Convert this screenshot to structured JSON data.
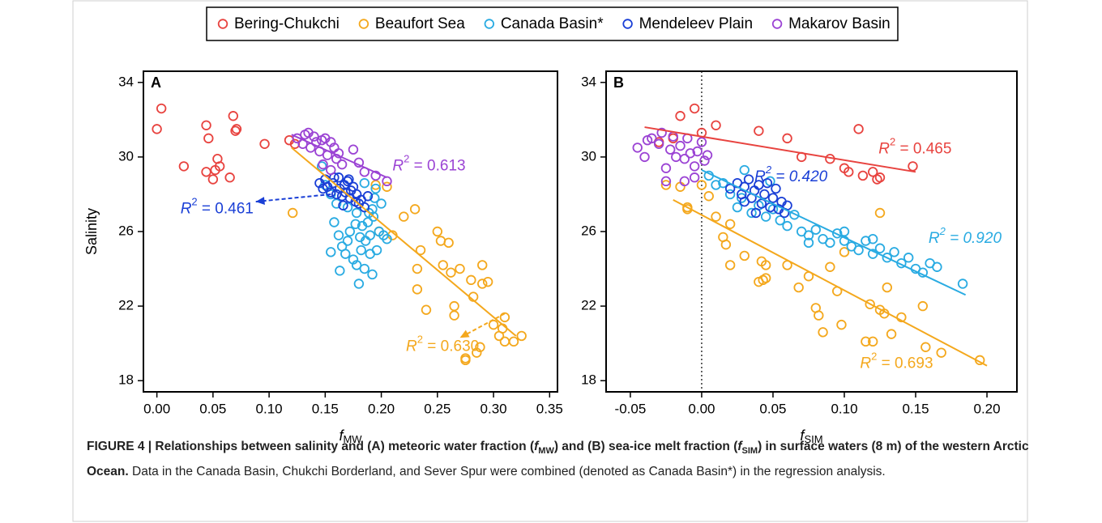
{
  "legend_position": "top",
  "chart_data": [
    {
      "type": "scatter",
      "panel_label": "A",
      "xlabel": {
        "symbol": "f",
        "subscript": "MW"
      },
      "ylabel": "Salinity",
      "xlim": [
        -0.012,
        0.357
      ],
      "ylim": [
        17.4,
        34.6
      ],
      "xticks": [
        {
          "value": 0,
          "label": "0.00"
        },
        {
          "value": 0.05,
          "label": "0.05"
        },
        {
          "value": 0.1,
          "label": "0.10"
        },
        {
          "value": 0.15,
          "label": "0.15"
        },
        {
          "value": 0.2,
          "label": "0.20"
        },
        {
          "value": 0.25,
          "label": "0.25"
        },
        {
          "value": 0.3,
          "label": "0.30"
        },
        {
          "value": 0.35,
          "label": "0.35"
        }
      ],
      "yticks": [
        18,
        22,
        26,
        30,
        34
      ],
      "series": [
        {
          "name": "Bering-Chukchi",
          "color": "#e8433f",
          "x": [
            0.0,
            0.004,
            0.024,
            0.044,
            0.046,
            0.044,
            0.05,
            0.052,
            0.054,
            0.056,
            0.065,
            0.068,
            0.07,
            0.071,
            0.096,
            0.118,
            0.123
          ],
          "y": [
            31.5,
            32.6,
            29.5,
            31.7,
            31.0,
            29.2,
            28.8,
            29.3,
            29.9,
            29.5,
            28.9,
            32.2,
            31.4,
            31.5,
            30.7,
            30.9,
            30.7
          ]
        },
        {
          "name": "Beaufort Sea",
          "color": "#f4a81d",
          "x": [
            0.121,
            0.205,
            0.22,
            0.23,
            0.232,
            0.232,
            0.235,
            0.24,
            0.25,
            0.253,
            0.255,
            0.26,
            0.262,
            0.265,
            0.265,
            0.27,
            0.275,
            0.275,
            0.28,
            0.282,
            0.285,
            0.288,
            0.29,
            0.29,
            0.295,
            0.3,
            0.305,
            0.308,
            0.31,
            0.31,
            0.318,
            0.325,
            0.21,
            0.198,
            0.195
          ],
          "y": [
            27.0,
            28.4,
            26.8,
            27.2,
            24.0,
            22.9,
            25.0,
            21.8,
            26.0,
            25.5,
            24.2,
            25.4,
            23.8,
            22.0,
            21.5,
            24.0,
            19.2,
            19.1,
            23.4,
            22.5,
            19.5,
            19.8,
            24.2,
            23.2,
            23.3,
            21.0,
            20.4,
            20.8,
            21.4,
            20.1,
            20.1,
            20.4,
            25.8,
            26.0,
            28.5
          ],
          "fit": {
            "x": [
              0.12,
              0.32
            ],
            "y": [
              30.5,
              20.4
            ]
          },
          "annotation": {
            "symbol": "R",
            "superscript": "2",
            "text": " = 0.630",
            "x": 0.222,
            "y": 19.8,
            "arrow": {
              "x": [
                0.31,
                0.27
              ],
              "y": [
                21.6,
                20.3
              ]
            }
          }
        },
        {
          "name": "Canada Basin*",
          "color": "#29abe2",
          "x": [
            0.147,
            0.15,
            0.155,
            0.16,
            0.162,
            0.165,
            0.168,
            0.17,
            0.172,
            0.175,
            0.178,
            0.18,
            0.182,
            0.183,
            0.185,
            0.186,
            0.188,
            0.189,
            0.19,
            0.19,
            0.192,
            0.193,
            0.194,
            0.195,
            0.196,
            0.198,
            0.2,
            0.202,
            0.205,
            0.158,
            0.155,
            0.163,
            0.17,
            0.178,
            0.185,
            0.192,
            0.177,
            0.181
          ],
          "y": [
            29.5,
            28.5,
            28.0,
            27.5,
            25.8,
            25.2,
            24.8,
            25.5,
            26.0,
            24.5,
            24.2,
            23.2,
            25.0,
            26.3,
            24.0,
            25.5,
            26.5,
            27.0,
            25.8,
            24.8,
            23.7,
            26.8,
            27.8,
            28.3,
            25.0,
            26.0,
            27.5,
            25.8,
            25.6,
            26.5,
            24.9,
            23.9,
            27.3,
            27.0,
            28.6,
            27.2,
            26.4,
            25.7
          ]
        },
        {
          "name": "Mendeleev Plain",
          "color": "#1a3fd6",
          "x": [
            0.145,
            0.148,
            0.15,
            0.152,
            0.155,
            0.157,
            0.16,
            0.162,
            0.163,
            0.165,
            0.167,
            0.168,
            0.17,
            0.172,
            0.173,
            0.175,
            0.177,
            0.178,
            0.18,
            0.182,
            0.185,
            0.188,
            0.158,
            0.166,
            0.171
          ],
          "y": [
            28.6,
            28.3,
            28.8,
            28.4,
            28.1,
            28.6,
            28.0,
            28.9,
            28.3,
            27.9,
            28.5,
            28.1,
            28.7,
            27.8,
            28.2,
            28.4,
            27.6,
            28.0,
            27.5,
            27.7,
            27.3,
            27.9,
            28.9,
            27.4,
            28.8
          ],
          "annotation": {
            "symbol": "R",
            "superscript": "2",
            "text": " = 0.461",
            "x": 0.021,
            "y": 27.2,
            "arrow": {
              "x": [
                0.155,
                0.088
              ],
              "y": [
                28.0,
                27.6
              ]
            }
          }
        },
        {
          "name": "Makarov Basin",
          "color": "#9b43d4",
          "x": [
            0.125,
            0.13,
            0.132,
            0.135,
            0.137,
            0.14,
            0.142,
            0.145,
            0.147,
            0.15,
            0.152,
            0.155,
            0.158,
            0.16,
            0.162,
            0.165,
            0.175,
            0.18,
            0.185,
            0.195,
            0.205,
            0.148,
            0.155
          ],
          "y": [
            31.0,
            30.7,
            31.2,
            31.3,
            30.5,
            31.1,
            30.8,
            30.3,
            30.9,
            31.0,
            30.1,
            30.8,
            30.5,
            29.9,
            30.2,
            29.6,
            30.4,
            29.7,
            29.2,
            29.0,
            28.7,
            29.6,
            29.3
          ],
          "fit": {
            "x": [
              0.12,
              0.205
            ],
            "y": [
              31.2,
              28.9
            ]
          },
          "annotation": {
            "symbol": "R",
            "superscript": "2",
            "text": " = 0.613",
            "x": 0.21,
            "y": 29.5
          }
        }
      ]
    },
    {
      "type": "scatter",
      "panel_label": "B",
      "xlabel": {
        "symbol": "f",
        "subscript": "SIM"
      },
      "xlim": [
        -0.067,
        0.221
      ],
      "ylim": [
        17.4,
        34.6
      ],
      "vline": 0,
      "xticks": [
        {
          "value": -0.05,
          "label": "-0.05"
        },
        {
          "value": 0,
          "label": "0.00"
        },
        {
          "value": 0.05,
          "label": "0.05"
        },
        {
          "value": 0.1,
          "label": "0.10"
        },
        {
          "value": 0.15,
          "label": "0.15"
        },
        {
          "value": 0.2,
          "label": "0.20"
        }
      ],
      "yticks": [
        18,
        22,
        26,
        30,
        34
      ],
      "series": [
        {
          "color": "#e8433f",
          "x": [
            -0.015,
            -0.005,
            0.0,
            0.01,
            0.04,
            0.06,
            0.07,
            0.09,
            0.1,
            0.103,
            0.11,
            0.113,
            0.12,
            0.123,
            0.125,
            0.148,
            -0.03,
            -0.02
          ],
          "y": [
            32.2,
            32.6,
            31.3,
            31.7,
            31.4,
            31.0,
            30.0,
            29.9,
            29.4,
            29.2,
            31.5,
            29.0,
            29.2,
            28.8,
            28.9,
            29.5,
            30.8,
            31.0
          ],
          "fit": {
            "x": [
              -0.04,
              0.15
            ],
            "y": [
              31.6,
              29.2
            ]
          },
          "annotation": {
            "symbol": "R",
            "superscript": "2",
            "text": " = 0.465",
            "x": 0.124,
            "y": 30.4
          }
        },
        {
          "color": "#f4a81d",
          "x": [
            -0.025,
            -0.015,
            -0.01,
            -0.01,
            0.0,
            0.005,
            0.01,
            0.015,
            0.017,
            0.02,
            0.02,
            0.03,
            0.04,
            0.042,
            0.043,
            0.045,
            0.06,
            0.068,
            0.075,
            0.08,
            0.082,
            0.085,
            0.09,
            0.095,
            0.098,
            0.1,
            0.115,
            0.118,
            0.12,
            0.125,
            0.128,
            0.13,
            0.133,
            0.14,
            0.155,
            0.157,
            0.168,
            0.195,
            0.125,
            0.045
          ],
          "y": [
            28.5,
            28.4,
            27.3,
            27.2,
            28.5,
            27.9,
            26.8,
            25.7,
            25.3,
            24.2,
            26.4,
            24.7,
            23.3,
            24.4,
            23.4,
            23.5,
            24.2,
            23.0,
            23.6,
            21.9,
            21.5,
            20.6,
            24.1,
            22.8,
            21.0,
            24.9,
            20.1,
            22.1,
            20.1,
            21.8,
            21.6,
            23.0,
            20.5,
            21.4,
            22.0,
            19.8,
            19.5,
            19.1,
            27.0,
            24.2
          ],
          "fit": {
            "x": [
              -0.02,
              0.2
            ],
            "y": [
              27.7,
              18.8
            ]
          },
          "annotation": {
            "symbol": "R",
            "superscript": "2",
            "text": " = 0.693",
            "x": 0.111,
            "y": 18.9
          }
        },
        {
          "color": "#29abe2",
          "x": [
            0.005,
            0.01,
            0.015,
            0.02,
            0.025,
            0.028,
            0.03,
            0.035,
            0.04,
            0.045,
            0.05,
            0.055,
            0.06,
            0.065,
            0.07,
            0.075,
            0.08,
            0.085,
            0.09,
            0.095,
            0.1,
            0.105,
            0.11,
            0.115,
            0.12,
            0.125,
            0.13,
            0.135,
            0.14,
            0.145,
            0.15,
            0.155,
            0.16,
            0.165,
            0.183,
            0.075,
            0.1,
            0.12,
            0.048
          ],
          "y": [
            29.0,
            28.5,
            28.6,
            28.0,
            27.3,
            27.8,
            29.3,
            27.0,
            27.4,
            26.8,
            27.2,
            26.6,
            26.3,
            26.9,
            26.0,
            25.8,
            26.1,
            25.6,
            25.4,
            25.9,
            25.5,
            25.2,
            25.0,
            25.5,
            24.8,
            25.1,
            24.6,
            24.9,
            24.3,
            24.6,
            24.0,
            23.8,
            24.3,
            24.1,
            23.2,
            25.4,
            26.0,
            25.6,
            28.7
          ],
          "fit": {
            "x": [
              0.0,
              0.185
            ],
            "y": [
              29.3,
              22.6
            ]
          },
          "annotation": {
            "symbol": "R",
            "superscript": "2",
            "text": " = 0.920",
            "x": 0.159,
            "y": 25.6
          }
        },
        {
          "color": "#1a3fd6",
          "x": [
            0.02,
            0.025,
            0.028,
            0.03,
            0.033,
            0.035,
            0.037,
            0.04,
            0.042,
            0.044,
            0.046,
            0.048,
            0.05,
            0.052,
            0.054,
            0.056,
            0.058,
            0.06,
            0.038,
            0.03
          ],
          "y": [
            28.3,
            28.6,
            28.0,
            28.4,
            28.8,
            27.8,
            28.2,
            28.5,
            27.5,
            28.0,
            28.6,
            27.3,
            27.8,
            28.3,
            27.2,
            27.6,
            27.0,
            27.4,
            27.0,
            27.6
          ],
          "annotation": {
            "symbol": "R",
            "superscript": "2",
            "text": " = 0.420",
            "x": 0.037,
            "y": 28.9
          }
        },
        {
          "color": "#9b43d4",
          "x": [
            -0.045,
            -0.04,
            -0.038,
            -0.035,
            -0.03,
            -0.028,
            -0.025,
            -0.022,
            -0.02,
            -0.018,
            -0.015,
            -0.012,
            -0.01,
            -0.008,
            -0.005,
            -0.003,
            0.0,
            0.002,
            0.004,
            -0.025,
            -0.012,
            -0.005
          ],
          "y": [
            30.5,
            30.0,
            30.9,
            31.0,
            30.7,
            31.3,
            29.4,
            30.4,
            31.1,
            30.0,
            30.6,
            29.9,
            31.0,
            30.2,
            29.5,
            30.3,
            30.8,
            29.8,
            30.1,
            28.7,
            28.7,
            28.9
          ]
        }
      ]
    }
  ],
  "caption": [
    {
      "text": "FIGURE 4 | Relationships between salinity and (A) meteoric water fraction (",
      "style": "bold"
    },
    {
      "text": "f",
      "style": "bold-italic"
    },
    {
      "text": "MW",
      "style": "bold-sub"
    },
    {
      "text": ") and (B) sea-ice melt fraction (",
      "style": "bold"
    },
    {
      "text": "f",
      "style": "bold-italic"
    },
    {
      "text": "SIM",
      "style": "bold-sub"
    },
    {
      "text": ") in surface waters (8 m) of the western Arctic Ocean.",
      "style": "bold"
    },
    {
      "text": " Data in the Canada Basin, Chukchi Borderland, and Sever Spur were combined (denoted as Canada Basin*) in the regression analysis.",
      "style": "regular"
    }
  ]
}
